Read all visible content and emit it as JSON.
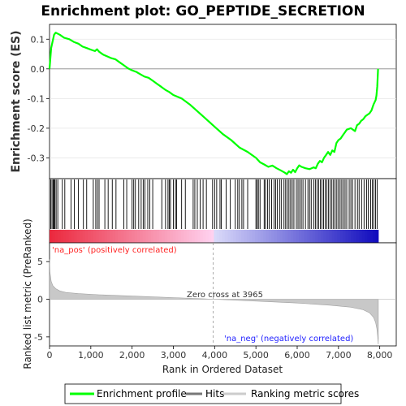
{
  "title": "Enrichment plot: GO_PEPTIDE_SECRETION",
  "colors": {
    "enrichment_line": "#00ff00",
    "hits": "#000000",
    "metric_fill": "#c8c8c8",
    "pos_label": "#ff2222",
    "neg_label": "#2222ff",
    "zero_line": "#999999"
  },
  "chart_data": [
    {
      "type": "line",
      "panel": "enrichment",
      "ylabel": "Enrichment score (ES)",
      "ylim": [
        -0.37,
        0.15
      ],
      "yticks": [
        0.1,
        0.0,
        -0.1,
        -0.2,
        -0.3
      ],
      "ytick_labels": [
        "0.1",
        "0.0",
        "-0.1",
        "-0.2",
        "-0.3"
      ],
      "xlim": [
        0,
        8400
      ],
      "series": [
        {
          "name": "Enrichment profile",
          "x": [
            0,
            40,
            70,
            110,
            150,
            250,
            350,
            480,
            600,
            700,
            800,
            900,
            1000,
            1100,
            1150,
            1200,
            1300,
            1400,
            1500,
            1600,
            1700,
            1800,
            1900,
            2000,
            2100,
            2200,
            2300,
            2400,
            2500,
            2600,
            2700,
            2800,
            2900,
            3000,
            3200,
            3400,
            3600,
            3800,
            4000,
            4200,
            4400,
            4600,
            4800,
            5000,
            5100,
            5200,
            5300,
            5400,
            5500,
            5600,
            5700,
            5750,
            5800,
            5850,
            5900,
            5950,
            6000,
            6050,
            6100,
            6200,
            6300,
            6400,
            6450,
            6500,
            6550,
            6600,
            6650,
            6700,
            6750,
            6800,
            6850,
            6900,
            6950,
            7000,
            7050,
            7100,
            7150,
            7200,
            7300,
            7400,
            7450,
            7500,
            7550,
            7600,
            7650,
            7700,
            7750,
            7800,
            7850,
            7900,
            7920,
            7940,
            7960
          ],
          "y": [
            0.0,
            0.07,
            0.09,
            0.115,
            0.122,
            0.115,
            0.105,
            0.1,
            0.09,
            0.085,
            0.075,
            0.07,
            0.065,
            0.06,
            0.066,
            0.058,
            0.048,
            0.042,
            0.036,
            0.032,
            0.022,
            0.012,
            0.002,
            -0.005,
            -0.01,
            -0.018,
            -0.026,
            -0.03,
            -0.04,
            -0.05,
            -0.06,
            -0.07,
            -0.078,
            -0.088,
            -0.1,
            -0.12,
            -0.145,
            -0.17,
            -0.195,
            -0.22,
            -0.24,
            -0.265,
            -0.28,
            -0.3,
            -0.315,
            -0.322,
            -0.33,
            -0.326,
            -0.335,
            -0.342,
            -0.35,
            -0.355,
            -0.345,
            -0.35,
            -0.34,
            -0.348,
            -0.335,
            -0.325,
            -0.33,
            -0.335,
            -0.338,
            -0.332,
            -0.335,
            -0.32,
            -0.31,
            -0.315,
            -0.3,
            -0.29,
            -0.28,
            -0.29,
            -0.275,
            -0.28,
            -0.25,
            -0.24,
            -0.235,
            -0.225,
            -0.215,
            -0.205,
            -0.2,
            -0.21,
            -0.19,
            -0.185,
            -0.175,
            -0.17,
            -0.16,
            -0.155,
            -0.15,
            -0.14,
            -0.12,
            -0.105,
            -0.09,
            -0.06,
            0.0
          ]
        }
      ]
    },
    {
      "type": "hits",
      "panel": "hits",
      "series": [
        {
          "name": "Hits",
          "x": [
            30,
            60,
            90,
            110,
            130,
            160,
            200,
            310,
            370,
            520,
            600,
            700,
            820,
            900,
            1060,
            1120,
            1160,
            1200,
            1340,
            1420,
            1520,
            1610,
            1800,
            1870,
            2000,
            2040,
            2080,
            2160,
            2220,
            2270,
            2310,
            2380,
            2430,
            2500,
            2720,
            2810,
            2870,
            2900,
            2930,
            3000,
            3050,
            3080,
            3200,
            3290,
            3480,
            3520,
            3580,
            3650,
            3720,
            3800,
            3950,
            4000,
            4050,
            4130,
            4160,
            4280,
            4380,
            4500,
            4560,
            4600,
            4660,
            4700,
            4800,
            5000,
            5030,
            5060,
            5100,
            5200,
            5230,
            5280,
            5320,
            5380,
            5440,
            5480,
            5520,
            5580,
            5620,
            5680,
            5720,
            5760,
            5800,
            5840,
            5880,
            5920,
            5980,
            6020,
            6060,
            6100,
            6140,
            6200,
            6260,
            6300,
            6340,
            6400,
            6440,
            6480,
            6520,
            6560,
            6600,
            6640,
            6680,
            6720,
            6760,
            6800,
            6840,
            6880,
            6920,
            6960,
            7000,
            7040,
            7080,
            7120,
            7160,
            7200,
            7260,
            7300,
            7340,
            7400,
            7460,
            7500,
            7560,
            7620,
            7680,
            7720,
            7780,
            7820,
            7860,
            7900,
            7940
          ]
        }
      ]
    },
    {
      "type": "area",
      "panel": "ranked_metric",
      "ylabel": "Ranked list metric (PreRanked)",
      "xlabel": "Rank in Ordered Dataset",
      "ylim": [
        -6.2,
        7.5
      ],
      "yticks": [
        5,
        0,
        -5
      ],
      "ytick_labels": [
        "5",
        "0",
        "-5"
      ],
      "xlim": [
        0,
        8400
      ],
      "xticks": [
        0,
        1000,
        2000,
        3000,
        4000,
        5000,
        6000,
        7000,
        8000
      ],
      "xtick_labels": [
        "0",
        "1,000",
        "2,000",
        "3,000",
        "4,000",
        "5,000",
        "6,000",
        "7,000",
        "8,000"
      ],
      "series": [
        {
          "name": "Ranking metric scores",
          "x": [
            0,
            10,
            40,
            80,
            150,
            250,
            400,
            700,
            1200,
            2000,
            3000,
            3965,
            5000,
            6000,
            6800,
            7300,
            7600,
            7750,
            7850,
            7900,
            7930,
            7950,
            7965
          ],
          "y": [
            5.3,
            3.6,
            2.4,
            1.8,
            1.4,
            1.1,
            0.9,
            0.75,
            0.6,
            0.42,
            0.22,
            0.0,
            -0.25,
            -0.5,
            -0.8,
            -1.05,
            -1.4,
            -1.8,
            -2.4,
            -3.1,
            -3.9,
            -4.9,
            -6.0
          ]
        }
      ],
      "zero_cross_label": "Zero cross at 3965",
      "pos_label": "'na_pos' (positively correlated)",
      "neg_label": "'na_neg' (negatively correlated)"
    }
  ],
  "legend": {
    "items": [
      "Enrichment profile",
      "Hits",
      "Ranking metric scores"
    ]
  }
}
